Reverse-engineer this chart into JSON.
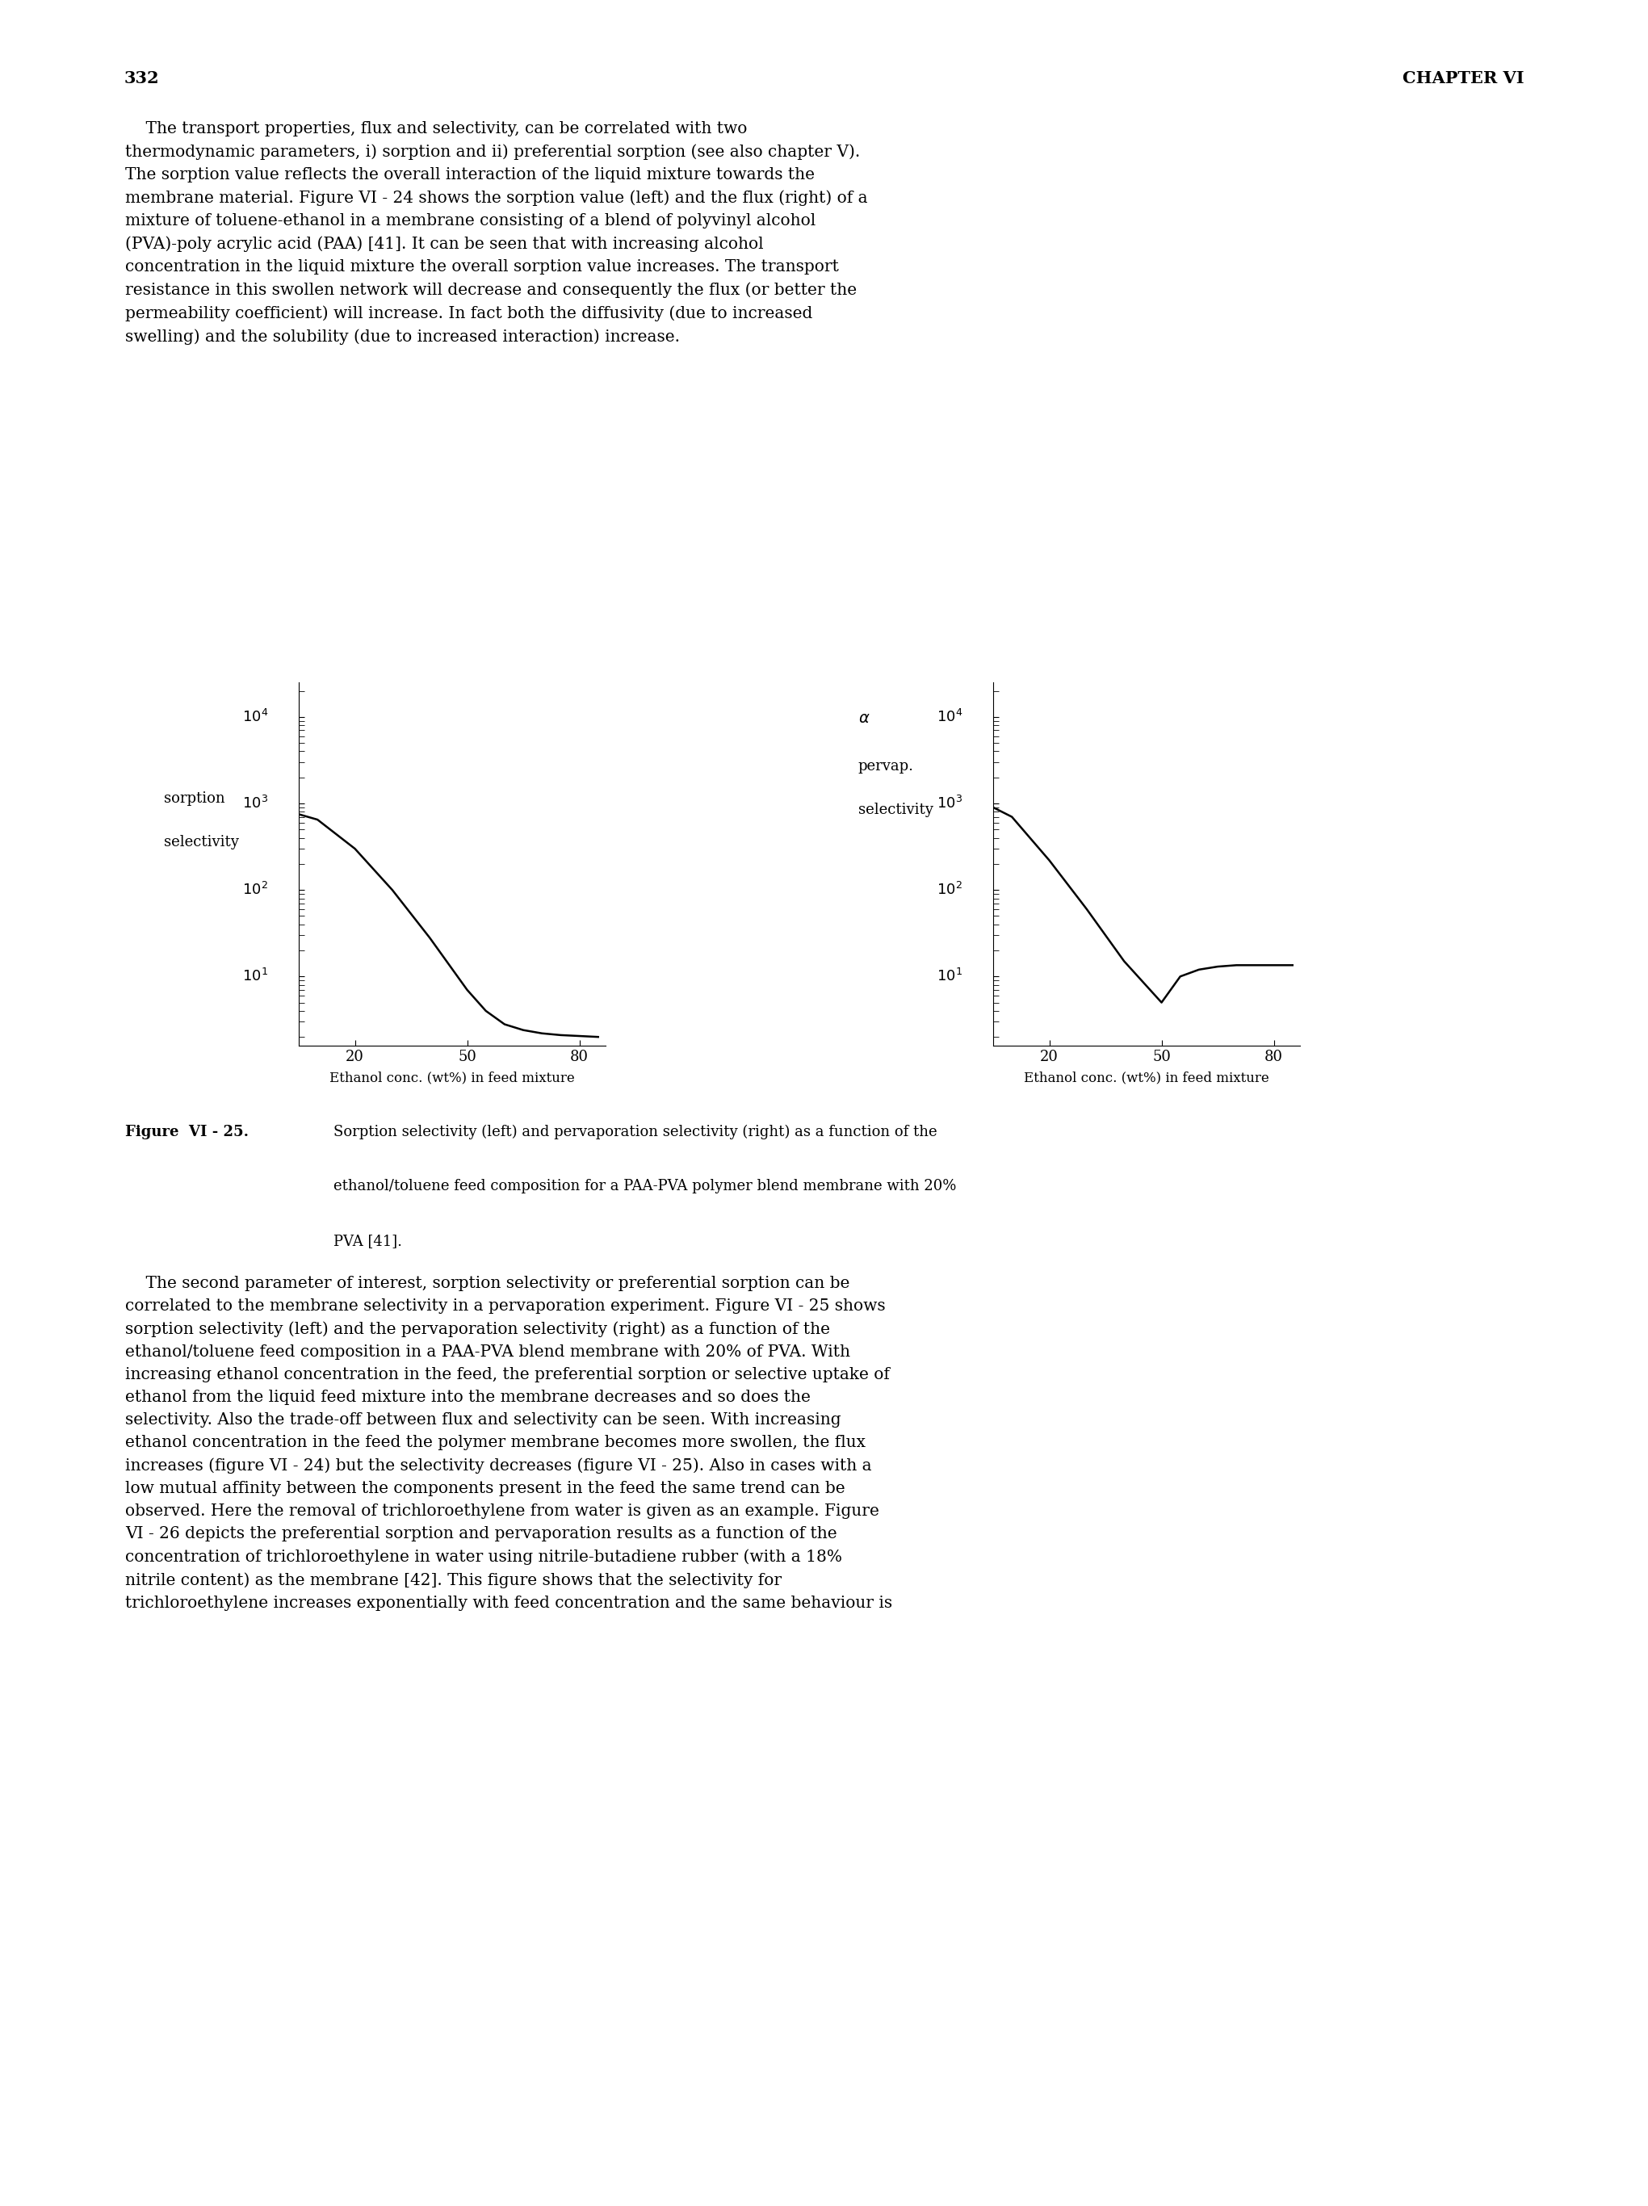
{
  "page_number": "332",
  "chapter": "CHAPTER VI",
  "xlabel": "Ethanol conc. (wt%) in feed mixture",
  "xticks": [
    20,
    50,
    80
  ],
  "left_x": [
    5,
    10,
    20,
    30,
    40,
    50,
    55,
    60,
    65,
    70,
    75,
    80,
    85
  ],
  "left_y": [
    750,
    650,
    300,
    100,
    28,
    7,
    4.0,
    2.8,
    2.4,
    2.2,
    2.1,
    2.05,
    2.0
  ],
  "right_x": [
    5,
    10,
    20,
    30,
    40,
    50,
    55,
    60,
    65,
    70,
    75,
    80,
    85
  ],
  "right_y": [
    900,
    700,
    220,
    60,
    15,
    5,
    10,
    12,
    13,
    13.5,
    13.5,
    13.5,
    13.5
  ],
  "top_paragraph_indent": "    The transport properties, flux and selectivity, can be correlated with two\nthermodynamic parameters, i) sorption and ii) preferential sorption (see also chapter V).\nThe sorption value reflects the overall interaction of the liquid mixture towards the\nmembrane material. Figure VI - 24 shows the sorption value (left) and the flux (right) of a\nmixture of toluene-ethanol in a membrane consisting of a blend of polyvinyl alcohol\n(PVA)-poly acrylic acid (PAA) [41]. It can be seen that with increasing alcohol\nconcentration in the liquid mixture the overall sorption value increases. The transport\nresistance in this swollen network will decrease and consequently the flux (or better the\npermeability coefficient) will increase. In fact both the diffusivity (due to increased\nswelling) and the solubility (due to increased interaction) increase.",
  "caption_bold": "Figure  VI - 25.",
  "caption_normal": "  Sorption selectivity (left) and pervaporation selectivity (right) as a function of the\nethanol/toluene feed composition for a PAA-PVA polymer blend membrane with 20%\nPVA [41].",
  "bottom_paragraph": "    The second parameter of interest, sorption selectivity or preferential sorption can be\ncorrelated to the membrane selectivity in a pervaporation experiment. Figure VI - 25 shows\nsorption selectivity (left) and the pervaporation selectivity (right) as a function of the\nethanol/toluene feed composition in a PAA-PVA blend membrane with 20% of PVA. With\nincreasing ethanol concentration in the feed, the preferential sorption or selective uptake of\nethanol from the liquid feed mixture into the membrane decreases and so does the\nselectivity. Also the trade-off between flux and selectivity can be seen. With increasing\nethanol concentration in the feed the polymer membrane becomes more swollen, the flux\nincreases (figure VI - 24) but the selectivity decreases (figure VI - 25). Also in cases with a\nlow mutual affinity between the components present in the feed the same trend can be\nobserved. Here the removal of trichloroethylene from water is given as an example. Figure\nVI - 26 depicts the preferential sorption and pervaporation results as a function of the\nconcentration of trichloroethylene in water using nitrile-butadiene rubber (with a 18%\nnitrile content) as the membrane [42]. This figure shows that the selectivity for\ntrichloroethylene increases exponentially with feed concentration and the same behaviour is",
  "ytick_exponents": [
    1,
    2,
    3,
    4
  ],
  "chart_font_size": 13,
  "text_font_size": 14.5,
  "header_font_size": 15,
  "caption_font_size": 13
}
